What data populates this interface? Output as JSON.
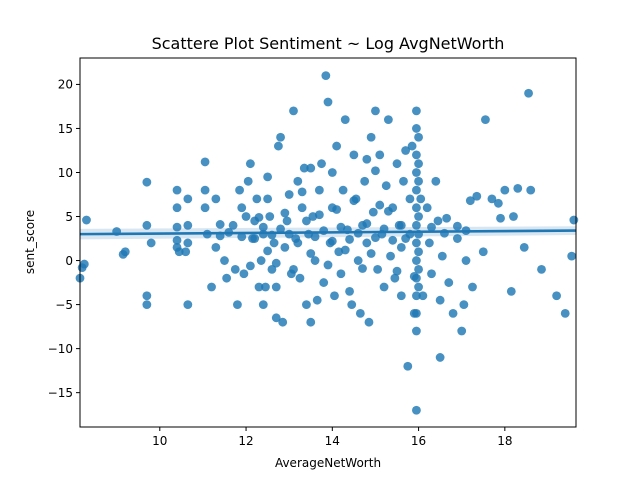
{
  "chart_data": {
    "type": "scatter",
    "title": "Scattere Plot Sentiment ~ Log AvgNetWorth",
    "xlabel": "AverageNetWorth",
    "ylabel": "sent_score",
    "xlim": [
      8.15,
      19.65
    ],
    "ylim": [
      -18.9,
      23.0
    ],
    "xticks": [
      "10",
      "12",
      "14",
      "16",
      "18"
    ],
    "yticks": [
      "−15",
      "−10",
      "−5",
      "0",
      "5",
      "10",
      "15",
      "20"
    ],
    "xtick_values": [
      10,
      12,
      14,
      16,
      18
    ],
    "ytick_values": [
      -15,
      -10,
      -5,
      0,
      5,
      10,
      15,
      20
    ],
    "grid": false,
    "point_color": "#1f77b4",
    "regression": {
      "x": [
        8.15,
        19.65
      ],
      "y": [
        3.0,
        3.4
      ],
      "ci_lower_start": 2.4,
      "ci_upper_start": 3.6,
      "ci_lower_end": 2.9,
      "ci_upper_end": 3.9
    },
    "points": [
      [
        8.15,
        -2
      ],
      [
        8.2,
        -0.8
      ],
      [
        8.3,
        4.6
      ],
      [
        8.25,
        -0.4
      ],
      [
        9.0,
        3.3
      ],
      [
        9.15,
        0.7
      ],
      [
        9.2,
        1.0
      ],
      [
        9.7,
        8.9
      ],
      [
        9.7,
        4.0
      ],
      [
        9.7,
        -4.0
      ],
      [
        9.7,
        -5.0
      ],
      [
        9.8,
        2.0
      ],
      [
        10.4,
        1.5
      ],
      [
        10.4,
        3.8
      ],
      [
        10.4,
        8.0
      ],
      [
        10.4,
        6.0
      ],
      [
        10.4,
        2.3
      ],
      [
        10.45,
        1.0
      ],
      [
        10.6,
        1.0
      ],
      [
        10.65,
        2.0
      ],
      [
        10.65,
        4.0
      ],
      [
        10.65,
        7.0
      ],
      [
        10.65,
        -5.0
      ],
      [
        11.05,
        11.2
      ],
      [
        11.05,
        8.0
      ],
      [
        11.05,
        6.0
      ],
      [
        11.1,
        3.0
      ],
      [
        11.2,
        -3.0
      ],
      [
        11.3,
        1.5
      ],
      [
        11.3,
        7.0
      ],
      [
        11.4,
        2.8
      ],
      [
        11.5,
        0.0
      ],
      [
        11.55,
        -2.0
      ],
      [
        11.6,
        3.2
      ],
      [
        11.7,
        4.0
      ],
      [
        11.75,
        -1.0
      ],
      [
        11.8,
        -5.0
      ],
      [
        11.85,
        8.0
      ],
      [
        11.9,
        6.0
      ],
      [
        11.95,
        -1.5
      ],
      [
        12.0,
        5.0
      ],
      [
        12.05,
        9.0
      ],
      [
        12.1,
        11.0
      ],
      [
        12.1,
        -0.6
      ],
      [
        12.15,
        2.5
      ],
      [
        12.2,
        4.5
      ],
      [
        12.25,
        7.0
      ],
      [
        12.3,
        -3.0
      ],
      [
        12.35,
        0.0
      ],
      [
        12.4,
        3.0
      ],
      [
        12.4,
        -5.0
      ],
      [
        12.45,
        -3.0
      ],
      [
        12.5,
        7.0
      ],
      [
        12.55,
        5.0
      ],
      [
        12.6,
        -1.0
      ],
      [
        12.65,
        2.0
      ],
      [
        12.7,
        -6.5
      ],
      [
        12.7,
        -3.0
      ],
      [
        12.75,
        13.0
      ],
      [
        12.8,
        14.0
      ],
      [
        12.85,
        -7.0
      ],
      [
        12.9,
        1.5
      ],
      [
        12.95,
        4.5
      ],
      [
        13.0,
        7.5
      ],
      [
        13.05,
        -1.5
      ],
      [
        13.1,
        17.0
      ],
      [
        13.15,
        2.5
      ],
      [
        13.2,
        9.0
      ],
      [
        13.25,
        -2.0
      ],
      [
        13.3,
        6.0
      ],
      [
        13.35,
        10.5
      ],
      [
        13.4,
        -5.0
      ],
      [
        13.45,
        3.0
      ],
      [
        13.5,
        -7.0
      ],
      [
        13.55,
        5.0
      ],
      [
        13.6,
        0.0
      ],
      [
        13.65,
        -4.5
      ],
      [
        13.7,
        8.0
      ],
      [
        13.75,
        11.0
      ],
      [
        13.8,
        -2.5
      ],
      [
        13.85,
        21.0
      ],
      [
        13.9,
        18.0
      ],
      [
        13.95,
        2.0
      ],
      [
        14.0,
        6.0
      ],
      [
        14.05,
        -4.0
      ],
      [
        14.1,
        13.0
      ],
      [
        14.15,
        1.0
      ],
      [
        14.2,
        -1.5
      ],
      [
        14.25,
        8.0
      ],
      [
        14.3,
        16.0
      ],
      [
        14.35,
        3.5
      ],
      [
        14.4,
        -3.5
      ],
      [
        14.45,
        -5.0
      ],
      [
        14.5,
        12.0
      ],
      [
        14.55,
        7.0
      ],
      [
        14.6,
        0.0
      ],
      [
        14.65,
        -6.0
      ],
      [
        14.7,
        4.0
      ],
      [
        14.75,
        9.0
      ],
      [
        14.8,
        2.0
      ],
      [
        14.85,
        -7.0
      ],
      [
        14.9,
        14.0
      ],
      [
        14.95,
        5.5
      ],
      [
        15.0,
        17.0
      ],
      [
        15.05,
        -1.0
      ],
      [
        15.1,
        12.0
      ],
      [
        15.15,
        3.0
      ],
      [
        15.2,
        -3.0
      ],
      [
        15.25,
        8.5
      ],
      [
        15.3,
        16.0
      ],
      [
        15.35,
        0.5
      ],
      [
        15.4,
        6.0
      ],
      [
        15.45,
        -2.0
      ],
      [
        15.5,
        11.0
      ],
      [
        15.55,
        4.0
      ],
      [
        15.6,
        -4.0
      ],
      [
        15.65,
        9.0
      ],
      [
        15.7,
        2.5
      ],
      [
        15.75,
        -12.0
      ],
      [
        15.8,
        7.0
      ],
      [
        15.85,
        13.0
      ],
      [
        15.9,
        -6.0
      ],
      [
        15.95,
        17.0
      ],
      [
        15.95,
        -17.0
      ],
      [
        15.95,
        15.0
      ],
      [
        15.95,
        12.0
      ],
      [
        15.95,
        10.0
      ],
      [
        15.95,
        8.0
      ],
      [
        15.95,
        6.0
      ],
      [
        15.95,
        4.0
      ],
      [
        15.95,
        2.0
      ],
      [
        15.95,
        0.0
      ],
      [
        15.95,
        -2.0
      ],
      [
        15.95,
        -4.0
      ],
      [
        15.95,
        -6.0
      ],
      [
        15.95,
        -8.0
      ],
      [
        16.0,
        14.0
      ],
      [
        16.0,
        11.0
      ],
      [
        16.0,
        9.0
      ],
      [
        16.0,
        5.0
      ],
      [
        16.0,
        3.0
      ],
      [
        16.0,
        1.0
      ],
      [
        16.0,
        -1.0
      ],
      [
        16.0,
        -3.0
      ],
      [
        16.05,
        7.0
      ],
      [
        16.1,
        -4.0
      ],
      [
        16.2,
        6.0
      ],
      [
        16.25,
        2.0
      ],
      [
        16.3,
        -1.5
      ],
      [
        16.4,
        9.0
      ],
      [
        16.45,
        4.5
      ],
      [
        16.5,
        -11.0
      ],
      [
        16.5,
        -4.5
      ],
      [
        16.55,
        0.5
      ],
      [
        16.65,
        4.8
      ],
      [
        16.7,
        -2.5
      ],
      [
        16.8,
        -6.0
      ],
      [
        16.9,
        2.5
      ],
      [
        17.0,
        -8.0
      ],
      [
        17.05,
        -5.0
      ],
      [
        17.1,
        0.0
      ],
      [
        17.2,
        6.8
      ],
      [
        17.25,
        -3.0
      ],
      [
        17.35,
        7.3
      ],
      [
        17.5,
        1.0
      ],
      [
        17.55,
        16.0
      ],
      [
        17.7,
        7.0
      ],
      [
        17.85,
        6.5
      ],
      [
        17.9,
        4.8
      ],
      [
        18.0,
        8.0
      ],
      [
        18.15,
        -3.5
      ],
      [
        18.2,
        5.0
      ],
      [
        18.3,
        8.2
      ],
      [
        18.45,
        1.5
      ],
      [
        18.55,
        19.0
      ],
      [
        18.6,
        8.0
      ],
      [
        18.85,
        -1.0
      ],
      [
        19.2,
        -4.0
      ],
      [
        19.4,
        -6.0
      ],
      [
        19.55,
        0.5
      ],
      [
        19.6,
        4.6
      ],
      [
        13.0,
        3.0
      ],
      [
        13.2,
        2.0
      ],
      [
        13.4,
        4.5
      ],
      [
        13.6,
        2.7
      ],
      [
        13.8,
        3.4
      ],
      [
        14.0,
        2.2
      ],
      [
        14.2,
        3.8
      ],
      [
        14.4,
        2.4
      ],
      [
        14.6,
        3.1
      ],
      [
        14.8,
        4.2
      ],
      [
        15.0,
        2.6
      ],
      [
        15.2,
        3.6
      ],
      [
        15.4,
        2.3
      ],
      [
        15.6,
        4.0
      ],
      [
        15.8,
        3.0
      ],
      [
        12.8,
        3.6
      ],
      [
        12.6,
        2.9
      ],
      [
        12.4,
        3.8
      ],
      [
        12.2,
        2.5
      ],
      [
        14.1,
        5.8
      ],
      [
        14.3,
        1.2
      ],
      [
        14.9,
        0.8
      ],
      [
        15.3,
        5.6
      ],
      [
        13.5,
        0.8
      ],
      [
        13.7,
        5.2
      ],
      [
        12.9,
        5.4
      ],
      [
        12.5,
        1.1
      ],
      [
        11.9,
        2.7
      ],
      [
        15.6,
        1.5
      ],
      [
        15.1,
        6.3
      ],
      [
        14.5,
        6.8
      ],
      [
        13.3,
        7.8
      ],
      [
        12.3,
        4.9
      ],
      [
        11.4,
        4.1
      ],
      [
        16.3,
        3.8
      ],
      [
        16.6,
        3.1
      ],
      [
        17.1,
        3.4
      ],
      [
        16.9,
        3.9
      ],
      [
        13.9,
        -0.5
      ],
      [
        14.7,
        -0.9
      ],
      [
        15.5,
        -1.2
      ],
      [
        12.7,
        -0.3
      ],
      [
        13.1,
        -1.0
      ],
      [
        15.9,
        -1.8
      ],
      [
        14.0,
        10.0
      ],
      [
        15.0,
        10.2
      ],
      [
        13.5,
        10.5
      ],
      [
        12.5,
        9.5
      ],
      [
        14.8,
        11.5
      ],
      [
        15.7,
        12.5
      ]
    ]
  }
}
